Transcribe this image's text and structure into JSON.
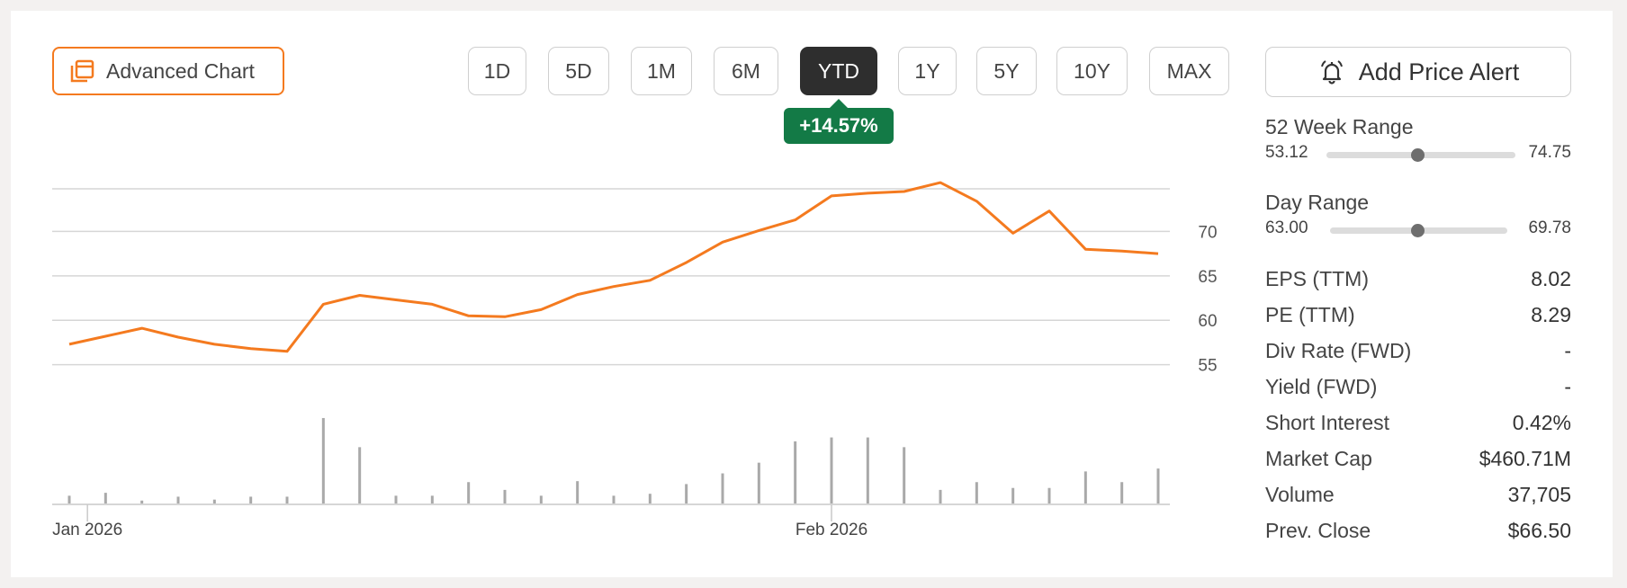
{
  "toolbar": {
    "advanced_chart_label": "Advanced Chart",
    "ranges": [
      "1D",
      "5D",
      "1M",
      "6M",
      "YTD",
      "1Y",
      "5Y",
      "10Y",
      "MAX"
    ],
    "active_range": "YTD",
    "change_badge": "+14.57%",
    "alert_label": "Add Price Alert",
    "accent_color": "#f47a1f",
    "positive_color": "#137a46"
  },
  "chart_data": {
    "type": "line",
    "y_ticks": [
      "70",
      "65",
      "60",
      "55"
    ],
    "x_tick_labels": [
      "Jan 2026",
      "Feb 2026"
    ],
    "ylim": [
      50,
      74.8
    ],
    "grid": true,
    "series": [
      {
        "values": [
          57.3,
          58.2,
          59.1,
          58.1,
          57.3,
          56.8,
          56.5,
          61.8,
          62.8,
          62.3,
          61.8,
          60.5,
          60.4,
          61.2,
          62.9,
          63.8,
          64.5,
          66.5,
          68.8,
          70.1,
          71.3,
          74.0,
          74.3,
          74.5,
          75.5,
          73.4,
          69.8,
          72.3,
          68.0,
          67.8,
          67.5
        ],
        "color": "#f47a1f"
      }
    ],
    "volume": [
      8,
      11,
      3,
      7,
      4,
      7,
      7,
      88,
      58,
      8,
      8,
      22,
      14,
      8,
      23,
      8,
      10,
      20,
      31,
      42,
      64,
      68,
      68,
      58,
      14,
      22,
      16,
      16,
      33,
      22,
      36
    ]
  },
  "stats": {
    "week52": {
      "label": "52 Week Range",
      "low": "53.12",
      "high": "74.75",
      "position": 0.48
    },
    "day": {
      "label": "Day Range",
      "low": "63.00",
      "high": "69.78",
      "position": 0.49
    },
    "rows": [
      {
        "label": "EPS (TTM)",
        "value": "8.02"
      },
      {
        "label": "PE (TTM)",
        "value": "8.29"
      },
      {
        "label": "Div Rate (FWD)",
        "value": "-"
      },
      {
        "label": "Yield (FWD)",
        "value": "-"
      },
      {
        "label": "Short Interest",
        "value": "0.42%"
      },
      {
        "label": "Market Cap",
        "value": "$460.71M"
      },
      {
        "label": "Volume",
        "value": "37,705"
      },
      {
        "label": "Prev. Close",
        "value": "$66.50"
      }
    ]
  }
}
